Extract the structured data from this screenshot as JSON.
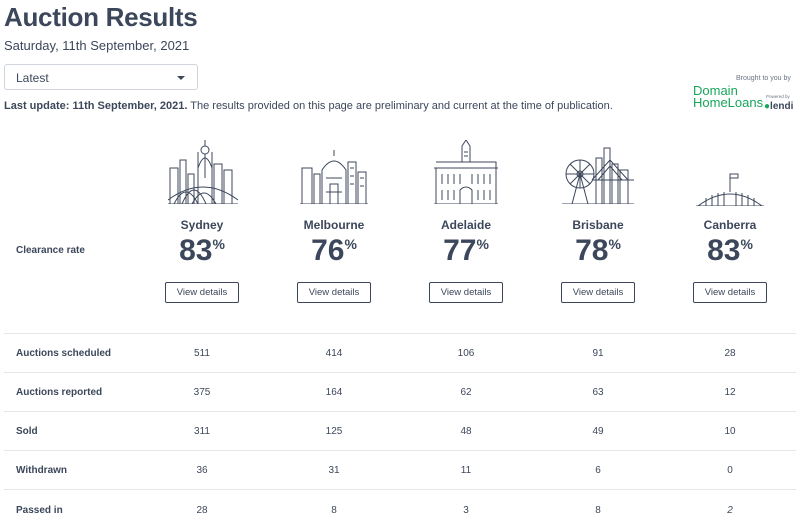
{
  "header": {
    "title": "Auction Results",
    "date": "Saturday, 11th September, 2021"
  },
  "selector": {
    "value": "Latest"
  },
  "update": {
    "bold": "Last update: 11th September, 2021.",
    "text": " The results provided on this page are preliminary and current at the time of publication."
  },
  "sponsor": {
    "brought": "Brought to you by",
    "domain": "Domain",
    "homeloans": "HomeLoans",
    "powered": "Powered by",
    "lendi": "lendi"
  },
  "clearance_label": "Clearance rate",
  "view_label": "View details",
  "cities": [
    {
      "name": "Sydney",
      "rate": "83",
      "pct": "%"
    },
    {
      "name": "Melbourne",
      "rate": "76",
      "pct": "%"
    },
    {
      "name": "Adelaide",
      "rate": "77",
      "pct": "%"
    },
    {
      "name": "Brisbane",
      "rate": "78",
      "pct": "%"
    },
    {
      "name": "Canberra",
      "rate": "83",
      "pct": "%"
    }
  ],
  "rows": [
    {
      "label": "Auctions scheduled",
      "values": [
        "511",
        "414",
        "106",
        "91",
        "28"
      ]
    },
    {
      "label": "Auctions reported",
      "values": [
        "375",
        "164",
        "62",
        "63",
        "12"
      ]
    },
    {
      "label": "Sold",
      "values": [
        "311",
        "125",
        "48",
        "49",
        "10"
      ]
    },
    {
      "label": "Withdrawn",
      "values": [
        "36",
        "31",
        "11",
        "6",
        "0"
      ]
    },
    {
      "label": "Passed in",
      "values": [
        "28",
        "8",
        "3",
        "8",
        "2"
      ]
    }
  ]
}
